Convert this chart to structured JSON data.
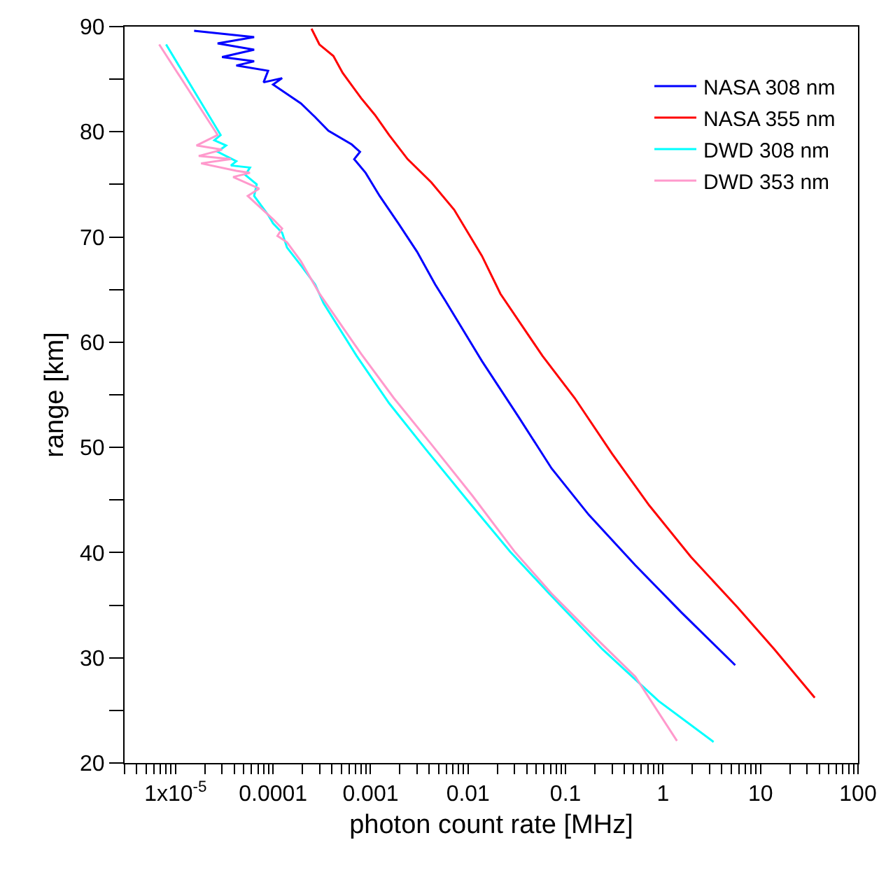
{
  "chart_data": {
    "type": "line",
    "xlabel": "photon count rate [MHz]",
    "ylabel": "range [km]",
    "log": "x",
    "grid": false,
    "legend": "top right",
    "line_style": "solid",
    "marker": "none",
    "xlim": [
      3e-06,
      100
    ],
    "ylim": [
      20,
      90
    ],
    "xticks": [
      {
        "value": 3e-06,
        "label": null
      },
      {
        "value": 4e-06,
        "label": null
      },
      {
        "value": 5e-06,
        "label": null
      },
      {
        "value": 6e-06,
        "label": null
      },
      {
        "value": 7e-06,
        "label": null
      },
      {
        "value": 8e-06,
        "label": null
      },
      {
        "value": 9e-06,
        "label": null
      },
      {
        "value": 1e-05,
        "label": "1x10$^{-5}$"
      },
      {
        "value": 2e-05,
        "label": null
      },
      {
        "value": 3e-05,
        "label": null
      },
      {
        "value": 4e-05,
        "label": null
      },
      {
        "value": 5e-05,
        "label": null
      },
      {
        "value": 6e-05,
        "label": null
      },
      {
        "value": 7e-05,
        "label": null
      },
      {
        "value": 8e-05,
        "label": null
      },
      {
        "value": 9e-05,
        "label": null
      },
      0.0001,
      {
        "value": 0.0002,
        "label": null
      },
      {
        "value": 0.0003,
        "label": null
      },
      {
        "value": 0.0004,
        "label": null
      },
      {
        "value": 0.0005,
        "label": null
      },
      {
        "value": 0.0006,
        "label": null
      },
      {
        "value": 0.0007,
        "label": null
      },
      {
        "value": 0.0008,
        "label": null
      },
      {
        "value": 0.0009,
        "label": null
      },
      0.001,
      {
        "value": 0.002,
        "label": null
      },
      {
        "value": 0.003,
        "label": null
      },
      {
        "value": 0.004,
        "label": null
      },
      {
        "value": 0.005,
        "label": null
      },
      {
        "value": 0.006,
        "label": null
      },
      {
        "value": 0.007,
        "label": null
      },
      {
        "value": 0.008,
        "label": null
      },
      {
        "value": 0.009,
        "label": null
      },
      0.01,
      {
        "value": 0.02,
        "label": null
      },
      {
        "value": 0.03,
        "label": null
      },
      {
        "value": 0.04,
        "label": null
      },
      {
        "value": 0.05,
        "label": null
      },
      {
        "value": 0.06,
        "label": null
      },
      {
        "value": 0.07,
        "label": null
      },
      {
        "value": 0.08,
        "label": null
      },
      {
        "value": 0.09,
        "label": null
      },
      0.1,
      {
        "value": 0.2,
        "label": null
      },
      {
        "value": 0.3,
        "label": null
      },
      {
        "value": 0.4,
        "label": null
      },
      {
        "value": 0.5,
        "label": null
      },
      {
        "value": 0.6,
        "label": null
      },
      {
        "value": 0.7,
        "label": null
      },
      {
        "value": 0.8,
        "label": null
      },
      {
        "value": 0.9,
        "label": null
      },
      1,
      {
        "value": 2,
        "label": null
      },
      {
        "value": 3,
        "label": null
      },
      {
        "value": 4,
        "label": null
      },
      {
        "value": 5,
        "label": null
      },
      {
        "value": 6,
        "label": null
      },
      {
        "value": 7,
        "label": null
      },
      {
        "value": 8,
        "label": null
      },
      {
        "value": 9,
        "label": null
      },
      10,
      {
        "value": 20,
        "label": null
      },
      {
        "value": 30,
        "label": null
      },
      {
        "value": 40,
        "label": null
      },
      {
        "value": 50,
        "label": null
      },
      {
        "value": 60,
        "label": null
      },
      {
        "value": 70,
        "label": null
      },
      {
        "value": 80,
        "label": null
      },
      {
        "value": 90,
        "label": null
      },
      100
    ],
    "yticks": [
      20,
      {
        "value": 25,
        "label": null
      },
      30,
      {
        "value": 35,
        "label": null
      },
      40,
      {
        "value": 45,
        "label": null
      },
      50,
      {
        "value": 55,
        "label": null
      },
      60,
      {
        "value": 65,
        "label": null
      },
      70,
      {
        "value": 75,
        "label": null
      },
      80,
      {
        "value": 85,
        "label": null
      },
      90
    ],
    "series": [
      {
        "name": "NASA 308 nm",
        "color": "#0000ff",
        "x": [
          1.55e-05,
          6.4e-05,
          2.7e-05,
          6.4e-05,
          3e-05,
          6.4e-05,
          4.2e-05,
          8.9e-05,
          8e-05,
          0.000124,
          0.0001,
          0.000139,
          0.000193,
          0.00027,
          0.00037,
          0.00064,
          0.00078,
          0.00068,
          0.00089,
          0.00124,
          0.00193,
          0.003,
          0.0046,
          0.0058,
          0.0139,
          0.033,
          0.072,
          0.173,
          0.52,
          1.55,
          5.5
        ],
        "values": [
          89.6,
          89.0,
          88.4,
          87.8,
          87.1,
          86.7,
          86.3,
          85.8,
          84.7,
          85.1,
          84.5,
          83.6,
          82.7,
          81.4,
          80.1,
          78.8,
          78.1,
          77.4,
          76.1,
          73.9,
          71.3,
          68.6,
          65.5,
          64.0,
          58.2,
          52.9,
          48.0,
          43.6,
          38.8,
          34.3,
          29.3
        ]
      },
      {
        "name": "NASA 355 nm",
        "color": "#ff0000",
        "x": [
          0.000248,
          0.000299,
          0.000416,
          0.000518,
          0.0008,
          0.00111,
          0.00155,
          0.0024,
          0.0042,
          0.0072,
          0.0139,
          0.0215,
          0.058,
          0.124,
          0.3,
          0.72,
          1.93,
          5.8,
          13.9,
          36
        ],
        "values": [
          89.8,
          88.3,
          87.2,
          85.6,
          83.2,
          81.6,
          79.7,
          77.4,
          75.2,
          72.6,
          68.2,
          64.6,
          58.7,
          54.7,
          49.4,
          44.5,
          39.6,
          34.8,
          30.8,
          26.2
        ]
      },
      {
        "name": "DWD 308 nm",
        "color": "#00ffff",
        "x": [
          8e-06,
          2.9e-05,
          2.5e-05,
          3.3e-05,
          2.7e-05,
          4.2e-05,
          3.7e-05,
          5.8e-05,
          5.2e-05,
          6.8e-05,
          6.4e-05,
          8.9e-05,
          0.0001,
          0.000124,
          0.000139,
          0.000193,
          0.00027,
          0.00033,
          0.00072,
          0.00155,
          0.0037,
          0.01,
          0.027,
          0.068,
          0.24,
          0.9,
          3.3
        ],
        "values": [
          88.3,
          79.7,
          79.2,
          78.7,
          78.1,
          77.2,
          76.8,
          76.6,
          75.9,
          75.0,
          73.9,
          72.1,
          71.3,
          70.4,
          69.0,
          67.3,
          65.5,
          63.7,
          58.7,
          54.2,
          49.8,
          44.9,
          40.1,
          36.1,
          30.8,
          25.9,
          22.0
        ]
      },
      {
        "name": "DWD 353 nm",
        "color": "#ff99cc",
        "x": [
          6.8e-06,
          2.7e-05,
          1.64e-05,
          3e-05,
          1.73e-05,
          3.7e-05,
          1.83e-05,
          4.2e-05,
          5.8e-05,
          3.9e-05,
          7.2e-05,
          5.5e-05,
          0.0001,
          0.000124,
          0.000111,
          0.000139,
          0.000193,
          0.0003,
          0.0008,
          0.00173,
          0.0042,
          0.0111,
          0.03,
          0.072,
          0.193,
          0.52,
          1.39
        ],
        "values": [
          88.3,
          79.7,
          78.7,
          78.3,
          77.7,
          77.4,
          77.0,
          76.3,
          76.1,
          75.7,
          74.6,
          73.9,
          71.7,
          70.8,
          70.1,
          69.5,
          67.7,
          64.6,
          58.9,
          54.7,
          50.3,
          45.4,
          40.1,
          36.1,
          32.1,
          28.2,
          22.1
        ]
      }
    ]
  }
}
